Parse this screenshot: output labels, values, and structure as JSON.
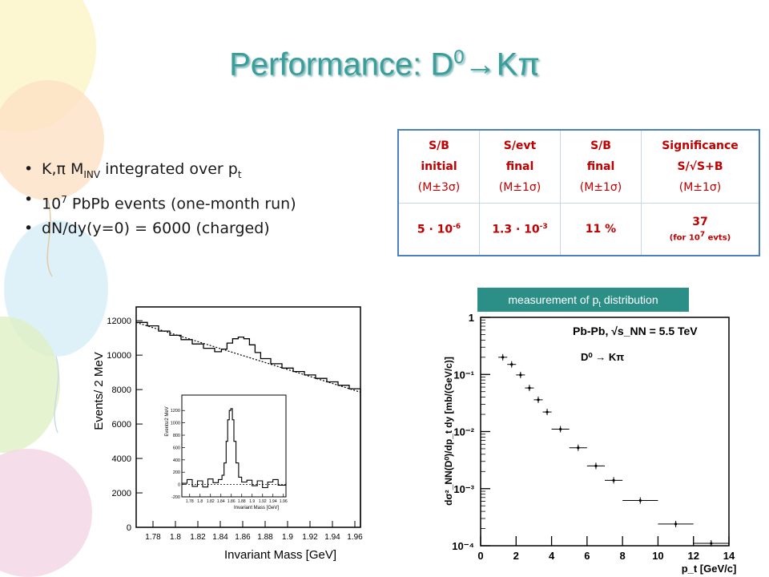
{
  "slide": {
    "title_main": "Performance: D",
    "title_sup": "0",
    "title_tail": "→Kπ",
    "bullets": [
      {
        "pre": "K,π M",
        "sub": "INV",
        "mid": " integrated over p",
        "sub2": "t"
      },
      {
        "pre": "10",
        "sup": "7",
        "post": " PbPb events (one-month run)"
      },
      {
        "text": "dN/dy(y=0) = 6000 (charged)"
      }
    ],
    "measurement_label_pre": "measurement of p",
    "measurement_label_sub": "t",
    "measurement_label_post": " distribution"
  },
  "table": {
    "headers": [
      {
        "l1": "S/B",
        "l2": "initial",
        "l3": "(M±3σ)"
      },
      {
        "l1": "S/evt",
        "l2": "final",
        "l3": "(M±1σ)"
      },
      {
        "l1": "S/B",
        "l2": "final",
        "l3": "(M±1σ)"
      },
      {
        "l1": "Significance",
        "l2": "S/√S+B",
        "l3": "(M±1σ)"
      }
    ],
    "values": [
      {
        "base": "5 · 10",
        "exp": "-6"
      },
      {
        "base": "1.3 · 10",
        "exp": "-3"
      },
      {
        "text": "11 %"
      },
      {
        "text": "37",
        "note_pre": "(for 10",
        "note_sup": "7",
        "note_post": " evts)"
      }
    ]
  },
  "chart_data": [
    {
      "type": "line",
      "description_axes": "histogram",
      "xlabel": "Invariant Mass [GeV]",
      "ylabel": "Events/ 2 MeV",
      "xlim": [
        1.765,
        1.965
      ],
      "ylim": [
        0,
        12800
      ],
      "xticks": [
        "1.78",
        "1.8",
        "1.82",
        "1.84",
        "1.86",
        "1.88",
        "1.9",
        "1.92",
        "1.94",
        "1.96"
      ],
      "xtick_values": [
        1.78,
        1.8,
        1.82,
        1.84,
        1.86,
        1.88,
        1.9,
        1.92,
        1.94,
        1.96
      ],
      "yticks": [
        "0",
        "2000",
        "4000",
        "6000",
        "8000",
        "10000",
        "12000"
      ],
      "ytick_values": [
        0,
        2000,
        4000,
        6000,
        8000,
        10000,
        12000
      ],
      "series": [
        {
          "x": [
            1.765,
            1.775,
            1.785,
            1.795,
            1.805,
            1.815,
            1.825,
            1.835,
            1.841,
            1.846,
            1.851,
            1.856,
            1.861,
            1.866,
            1.871,
            1.876,
            1.885,
            1.895,
            1.905,
            1.915,
            1.925,
            1.935,
            1.945,
            1.955,
            1.965
          ],
          "y": [
            11900,
            11700,
            11400,
            11150,
            10900,
            10650,
            10400,
            10200,
            10350,
            10700,
            10950,
            11050,
            10950,
            10600,
            10150,
            9800,
            9500,
            9250,
            9050,
            8850,
            8650,
            8450,
            8250,
            8050,
            7850
          ]
        },
        {
          "x": [
            1.765,
            1.965
          ],
          "y": [
            11900,
            7850
          ],
          "style": "dashed"
        }
      ],
      "inset": {
        "xlabel": "Invariant Mass [GeV]",
        "ylabel": "Events/2 MeV",
        "xlim": [
          1.765,
          1.965
        ],
        "ylim": [
          -200,
          1450
        ],
        "xticks": [
          "1.78",
          "1.8",
          "1.82",
          "1.84",
          "1.86",
          "1.88",
          "1.9",
          "1.92",
          "1.94",
          "1.96"
        ],
        "xtick_values": [
          1.78,
          1.8,
          1.82,
          1.84,
          1.86,
          1.88,
          1.9,
          1.92,
          1.94,
          1.96
        ],
        "yticks": [
          "-200",
          "0",
          "200",
          "400",
          "600",
          "800",
          "1000",
          "1200"
        ],
        "ytick_values": [
          -200,
          0,
          200,
          400,
          600,
          800,
          1000,
          1200
        ],
        "x": [
          1.765,
          1.775,
          1.785,
          1.795,
          1.805,
          1.815,
          1.825,
          1.835,
          1.842,
          1.846,
          1.85,
          1.853,
          1.856,
          1.859,
          1.862,
          1.865,
          1.869,
          1.874,
          1.88,
          1.89,
          1.9,
          1.91,
          1.92,
          1.93,
          1.94,
          1.95,
          1.965
        ],
        "y": [
          20,
          80,
          -30,
          60,
          -40,
          90,
          30,
          80,
          150,
          350,
          700,
          1050,
          1200,
          1230,
          1050,
          700,
          350,
          120,
          40,
          70,
          -20,
          60,
          -50,
          40,
          80,
          -10,
          30
        ]
      }
    },
    {
      "type": "scatter",
      "title": "Pb-Pb, √s_NN = 5.5 TeV",
      "legend": "D⁰ → Kπ",
      "xlabel": "p_t [GeV/c]",
      "ylabel": "dσ²_NN(D⁰)/dp_t dy [mb/(GeV/c)]",
      "log_y": true,
      "xlim": [
        0,
        14
      ],
      "ylim": [
        0.0001,
        1
      ],
      "xticks": [
        "0",
        "2",
        "4",
        "6",
        "8",
        "10",
        "12",
        "14"
      ],
      "xtick_values": [
        0,
        2,
        4,
        6,
        8,
        10,
        12,
        14
      ],
      "yticks": [
        "10⁻⁴",
        "10⁻³",
        "10⁻²",
        "10⁻¹",
        "1"
      ],
      "ytick_values": [
        0.0001,
        0.001,
        0.01,
        0.1,
        1
      ],
      "points": [
        {
          "x": 1.25,
          "xerr": 0.25,
          "y": 0.2
        },
        {
          "x": 1.75,
          "xerr": 0.25,
          "y": 0.15
        },
        {
          "x": 2.25,
          "xerr": 0.25,
          "y": 0.098
        },
        {
          "x": 2.75,
          "xerr": 0.25,
          "y": 0.058
        },
        {
          "x": 3.25,
          "xerr": 0.25,
          "y": 0.036
        },
        {
          "x": 3.75,
          "xerr": 0.25,
          "y": 0.022
        },
        {
          "x": 4.5,
          "xerr": 0.5,
          "y": 0.011
        },
        {
          "x": 5.5,
          "xerr": 0.5,
          "y": 0.0052
        },
        {
          "x": 6.5,
          "xerr": 0.5,
          "y": 0.0025
        },
        {
          "x": 7.5,
          "xerr": 0.5,
          "y": 0.0014
        },
        {
          "x": 9.0,
          "xerr": 1.0,
          "y": 0.00062
        },
        {
          "x": 11.0,
          "xerr": 1.0,
          "y": 0.00024
        },
        {
          "x": 13.0,
          "xerr": 1.0,
          "y": 0.00011
        }
      ]
    }
  ],
  "colors": {
    "title": "#3c9d9b",
    "table_text": "#c00000",
    "table_border": "#4a7fc0",
    "label_box": "#2b8f87"
  }
}
